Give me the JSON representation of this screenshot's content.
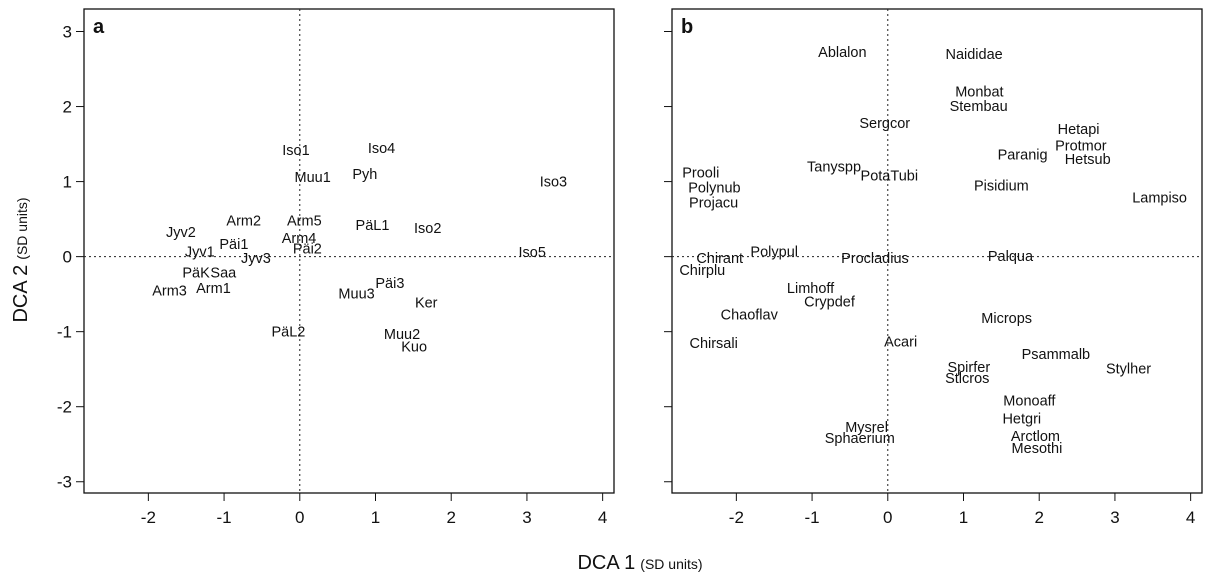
{
  "xlabel": {
    "main": "DCA 1",
    "unit": "(SD units)"
  },
  "ylabel": {
    "main": "DCA 2",
    "unit": "(SD units)"
  },
  "chart_data": [
    {
      "type": "scatter",
      "panel": "a",
      "xlim": [
        -2.85,
        4.15
      ],
      "ylim": [
        -3.15,
        3.3
      ],
      "xticks": [
        -2,
        -1,
        0,
        1,
        2,
        3,
        4
      ],
      "yticks": [
        -3,
        -2,
        -1,
        0,
        1,
        2,
        3
      ],
      "reference_lines": {
        "x": 0,
        "y": 0,
        "style": "dotted"
      },
      "points": [
        {
          "label": "Iso1",
          "x": -0.05,
          "y": 1.42
        },
        {
          "label": "Iso4",
          "x": 1.08,
          "y": 1.45
        },
        {
          "label": "Muu1",
          "x": 0.17,
          "y": 1.06
        },
        {
          "label": "Pyh",
          "x": 0.86,
          "y": 1.1
        },
        {
          "label": "Iso3",
          "x": 3.35,
          "y": 1.0
        },
        {
          "label": "Arm2",
          "x": -0.74,
          "y": 0.48
        },
        {
          "label": "Arm5",
          "x": 0.06,
          "y": 0.48
        },
        {
          "label": "PäL1",
          "x": 0.96,
          "y": 0.42
        },
        {
          "label": "Iso2",
          "x": 1.69,
          "y": 0.38
        },
        {
          "label": "Jyv2",
          "x": -1.57,
          "y": 0.33
        },
        {
          "label": "Arm4",
          "x": -0.01,
          "y": 0.25
        },
        {
          "label": "Päi1",
          "x": -0.87,
          "y": 0.17
        },
        {
          "label": "Päi2",
          "x": 0.1,
          "y": 0.11
        },
        {
          "label": "Jyv1",
          "x": -1.32,
          "y": 0.07
        },
        {
          "label": "Iso5",
          "x": 3.07,
          "y": 0.06
        },
        {
          "label": "Jyv3",
          "x": -0.58,
          "y": -0.02
        },
        {
          "label": "PäK",
          "x": -1.37,
          "y": -0.21
        },
        {
          "label": "Saa",
          "x": -1.01,
          "y": -0.21
        },
        {
          "label": "Päi3",
          "x": 1.19,
          "y": -0.35
        },
        {
          "label": "Arm3",
          "x": -1.72,
          "y": -0.45
        },
        {
          "label": "Arm1",
          "x": -1.14,
          "y": -0.42
        },
        {
          "label": "Muu3",
          "x": 0.75,
          "y": -0.49
        },
        {
          "label": "Ker",
          "x": 1.67,
          "y": -0.61
        },
        {
          "label": "PäL2",
          "x": -0.15,
          "y": -1.0
        },
        {
          "label": "Muu2",
          "x": 1.35,
          "y": -1.03
        },
        {
          "label": "Kuo",
          "x": 1.51,
          "y": -1.2
        }
      ]
    },
    {
      "type": "scatter",
      "panel": "b",
      "xlim": [
        -2.85,
        4.15
      ],
      "ylim": [
        -3.15,
        3.3
      ],
      "xticks": [
        -2,
        -1,
        0,
        1,
        2,
        3,
        4
      ],
      "yticks": [
        -3,
        -2,
        -1,
        0,
        1,
        2,
        3
      ],
      "reference_lines": {
        "x": 0,
        "y": 0,
        "style": "dotted"
      },
      "points": [
        {
          "label": "Ablalon",
          "x": -0.6,
          "y": 2.73
        },
        {
          "label": "Naididae",
          "x": 1.14,
          "y": 2.7
        },
        {
          "label": "Monbat",
          "x": 1.21,
          "y": 2.2
        },
        {
          "label": "Stembau",
          "x": 1.2,
          "y": 2.01
        },
        {
          "label": "Sergcor",
          "x": -0.04,
          "y": 1.78
        },
        {
          "label": "Hetapi",
          "x": 2.52,
          "y": 1.7
        },
        {
          "label": "Protmor",
          "x": 2.55,
          "y": 1.48
        },
        {
          "label": "Paranig",
          "x": 1.78,
          "y": 1.36
        },
        {
          "label": "Hetsub",
          "x": 2.64,
          "y": 1.3
        },
        {
          "label": "Tanyspp",
          "x": -0.71,
          "y": 1.2
        },
        {
          "label": "Prooli",
          "x": -2.47,
          "y": 1.12
        },
        {
          "label": "PotaTubi",
          "x": 0.02,
          "y": 1.08
        },
        {
          "label": "Pisidium",
          "x": 1.5,
          "y": 0.95
        },
        {
          "label": "Polynub",
          "x": -2.29,
          "y": 0.92
        },
        {
          "label": "Lampiso",
          "x": 3.59,
          "y": 0.79
        },
        {
          "label": "Projacu",
          "x": -2.3,
          "y": 0.72
        },
        {
          "label": "Polypul",
          "x": -1.5,
          "y": 0.07
        },
        {
          "label": "Chirant",
          "x": -2.22,
          "y": -0.02
        },
        {
          "label": "Procladius",
          "x": -0.17,
          "y": -0.02
        },
        {
          "label": "Palqua",
          "x": 1.62,
          "y": 0.01
        },
        {
          "label": "Chirplu",
          "x": -2.45,
          "y": -0.18
        },
        {
          "label": "Limhoff",
          "x": -1.02,
          "y": -0.42
        },
        {
          "label": "Crypdef",
          "x": -0.77,
          "y": -0.6
        },
        {
          "label": "Chaoflav",
          "x": -1.83,
          "y": -0.77
        },
        {
          "label": "Microps",
          "x": 1.57,
          "y": -0.82
        },
        {
          "label": "Chirsali",
          "x": -2.3,
          "y": -1.15
        },
        {
          "label": "Acari",
          "x": 0.17,
          "y": -1.13
        },
        {
          "label": "Psammalb",
          "x": 2.22,
          "y": -1.3
        },
        {
          "label": "Stylher",
          "x": 3.18,
          "y": -1.49
        },
        {
          "label": "Spirfer",
          "x": 1.07,
          "y": -1.47
        },
        {
          "label": "Stlcros",
          "x": 1.05,
          "y": -1.62
        },
        {
          "label": "Monoaff",
          "x": 1.87,
          "y": -1.92
        },
        {
          "label": "Hetgri",
          "x": 1.77,
          "y": -2.16
        },
        {
          "label": "Mysrel",
          "x": -0.28,
          "y": -2.27
        },
        {
          "label": "Arctlom",
          "x": 1.95,
          "y": -2.39
        },
        {
          "label": "Sphaerium",
          "x": -0.37,
          "y": -2.42
        },
        {
          "label": "Mesothi",
          "x": 1.97,
          "y": -2.55
        }
      ]
    }
  ]
}
